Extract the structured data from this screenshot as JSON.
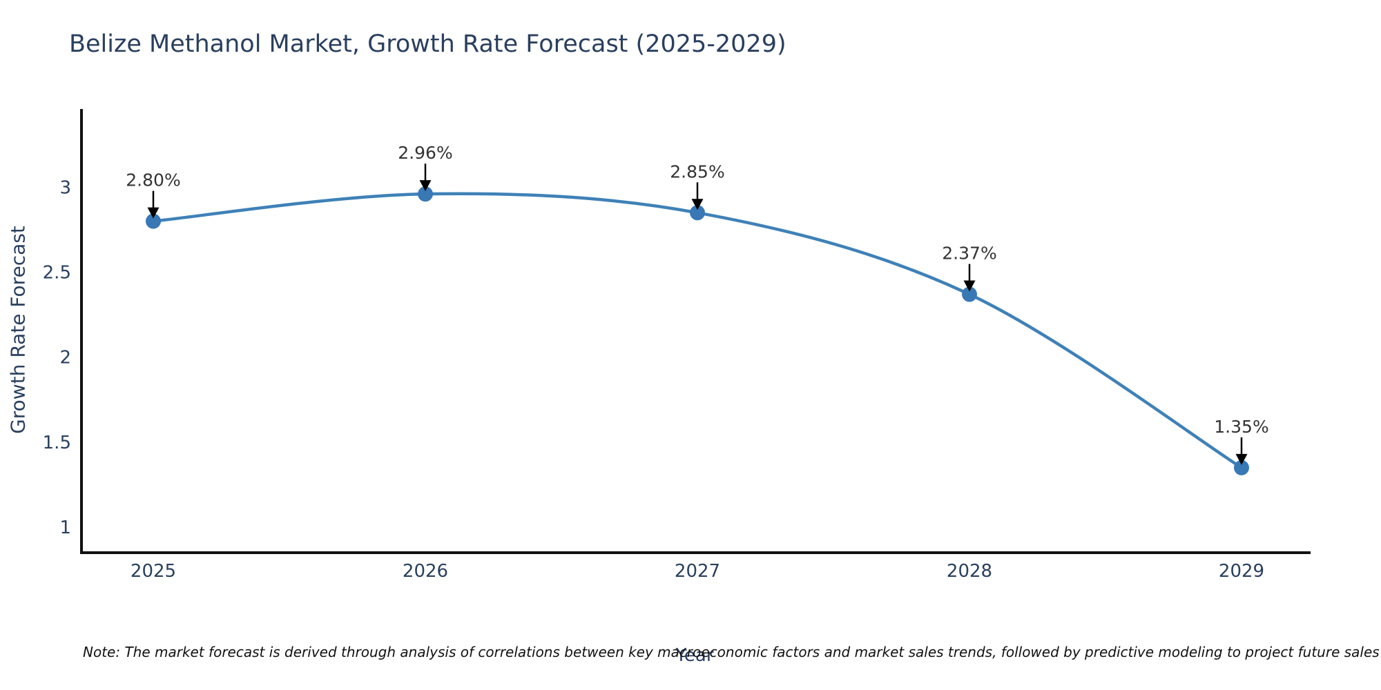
{
  "note": "Note: The market forecast is derived through analysis of correlations between key macroeconomic factors and market sales trends, followed by predictive modeling to project future sales",
  "chart_data": {
    "type": "line",
    "title": "Belize Methanol Market, Growth Rate Forecast (2025-2029)",
    "xlabel": "Year",
    "ylabel": "Growth Rate Forecast",
    "categories": [
      "2025",
      "2026",
      "2027",
      "2028",
      "2029"
    ],
    "series": [
      {
        "name": "Growth Rate Forecast",
        "values": [
          2.8,
          2.96,
          2.85,
          2.37,
          1.35
        ],
        "labels": [
          "2.80%",
          "2.96%",
          "2.85%",
          "2.37%",
          "1.35%"
        ]
      }
    ],
    "y_ticks": [
      3,
      2.5,
      2,
      1.5,
      1
    ],
    "ylim": [
      0.85,
      3.46
    ],
    "grid": false,
    "legend": "none",
    "line_shape": "smooth",
    "annotation_style": "value-label-with-down-arrow",
    "colors": {
      "line": "#3f81b8",
      "marker": "#3878b4",
      "axis": "#111111",
      "labels": "#2a3f5f",
      "annotation": "#333333",
      "arrow": "#000000",
      "background": "#ffffff"
    }
  }
}
